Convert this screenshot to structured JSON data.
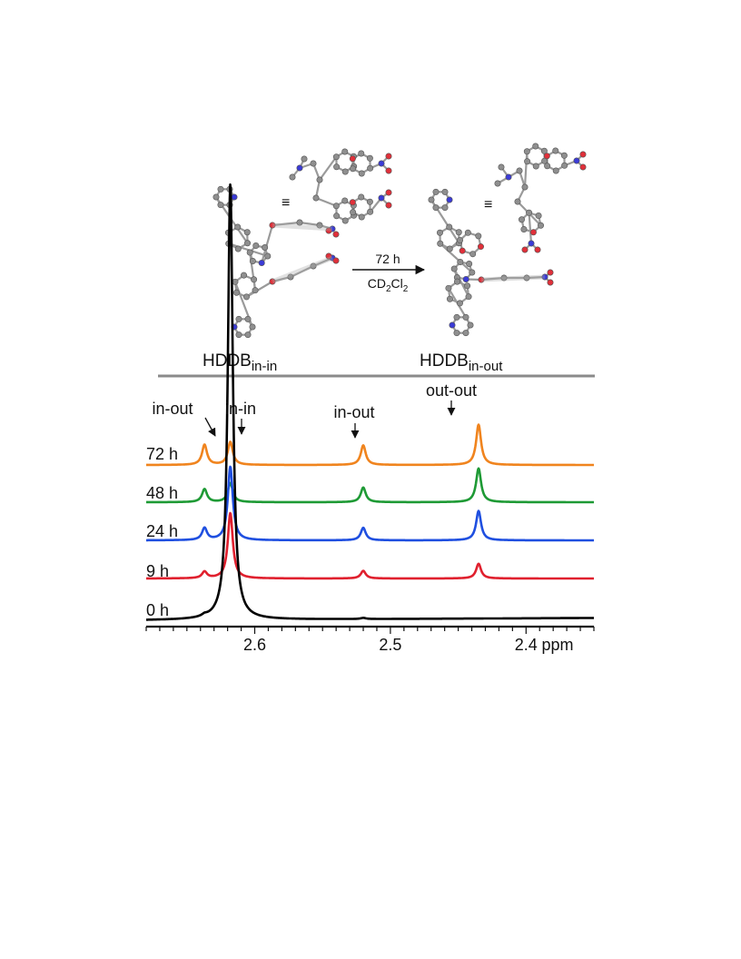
{
  "scheme": {
    "left_compound": {
      "base": "HDDB",
      "sub": "in-in"
    },
    "right_compound": {
      "base": "HDDB",
      "sub": "in-out"
    },
    "equivalence_symbol": "≡",
    "arrow": {
      "top": "72 h",
      "bottom_parts": [
        "CD",
        "2",
        "Cl",
        "2"
      ]
    },
    "atom_colors": {
      "carbon": "#8f8f8f",
      "nitrogen": "#3b3bd6",
      "oxygen": "#e0303a"
    }
  },
  "chart_data": {
    "type": "line",
    "xlabel": "ppm",
    "x_reversed": true,
    "xlim": [
      2.68,
      2.35
    ],
    "x_ticks": [
      2.6,
      2.5,
      2.4
    ],
    "x_tick_labels": [
      "2.6",
      "2.5",
      "2.4"
    ],
    "peak_annotations": [
      {
        "label": "in-out",
        "x": 2.637
      },
      {
        "label": "in-in",
        "x": 2.618
      },
      {
        "label": "in-out",
        "x": 2.52
      },
      {
        "label": "out-out",
        "x": 2.435
      }
    ],
    "series": [
      {
        "name": "0 h",
        "color": "#000000",
        "peaks": [
          {
            "x": 2.637,
            "h": 0.03
          },
          {
            "x": 2.618,
            "h": 8.0
          },
          {
            "x": 2.52,
            "h": 0.02
          },
          {
            "x": 2.435,
            "h": 0.0
          }
        ]
      },
      {
        "name": "9 h",
        "color": "#e0202e",
        "peaks": [
          {
            "x": 2.637,
            "h": 0.12
          },
          {
            "x": 2.618,
            "h": 1.2
          },
          {
            "x": 2.52,
            "h": 0.14
          },
          {
            "x": 2.435,
            "h": 0.27
          }
        ]
      },
      {
        "name": "24 h",
        "color": "#1f4fe0",
        "peaks": [
          {
            "x": 2.637,
            "h": 0.22
          },
          {
            "x": 2.618,
            "h": 1.35
          },
          {
            "x": 2.52,
            "h": 0.23
          },
          {
            "x": 2.435,
            "h": 0.54
          }
        ]
      },
      {
        "name": "48 h",
        "color": "#1e9a35",
        "peaks": [
          {
            "x": 2.637,
            "h": 0.24
          },
          {
            "x": 2.618,
            "h": 0.35
          },
          {
            "x": 2.52,
            "h": 0.27
          },
          {
            "x": 2.435,
            "h": 0.62
          }
        ]
      },
      {
        "name": "72 h",
        "color": "#f0841e",
        "peaks": [
          {
            "x": 2.637,
            "h": 0.37
          },
          {
            "x": 2.618,
            "h": 0.42
          },
          {
            "x": 2.52,
            "h": 0.36
          },
          {
            "x": 2.435,
            "h": 0.74
          }
        ]
      }
    ]
  }
}
